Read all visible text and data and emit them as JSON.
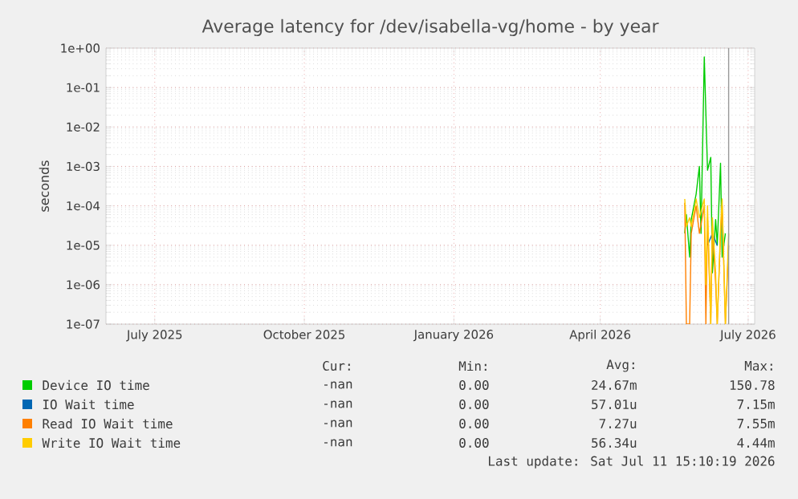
{
  "chart_data": {
    "type": "line",
    "title": "Average latency for /dev/isabella-vg/home - by year",
    "ylabel": "seconds",
    "log": "y",
    "grid": true,
    "legend": "bottom",
    "xlim": [
      "2025-06-01",
      "2026-07-05"
    ],
    "ylim": [
      1e-07,
      1
    ],
    "xticks": [
      {
        "value": "2025-07-01",
        "label": "July 2025"
      },
      {
        "value": "2025-10-01",
        "label": "October 2025"
      },
      {
        "value": "2026-01-01",
        "label": "January 2026"
      },
      {
        "value": "2026-04-01",
        "label": "April 2026"
      },
      {
        "value": "2026-07-01",
        "label": "July 2026"
      }
    ],
    "yticks": [
      {
        "value": 1e-07,
        "label": "1e-07"
      },
      {
        "value": 1e-06,
        "label": "1e-06"
      },
      {
        "value": 1e-05,
        "label": "1e-05"
      },
      {
        "value": 0.0001,
        "label": "1e-04"
      },
      {
        "value": 0.001,
        "label": "1e-03"
      },
      {
        "value": 0.01,
        "label": "1e-02"
      },
      {
        "value": 0.1,
        "label": "1e-01"
      },
      {
        "value": 1,
        "label": "1e+00"
      }
    ],
    "series": [
      {
        "name": "Device IO time",
        "color": "#00cc00",
        "x": [
          "2026-05-23",
          "2026-05-24",
          "2026-05-26",
          "2026-05-27",
          "2026-05-30",
          "2026-06-01",
          "2026-06-02",
          "2026-06-04",
          "2026-06-05",
          "2026-06-06",
          "2026-06-08",
          "2026-06-09",
          "2026-06-11",
          "2026-06-12",
          "2026-06-14",
          "2026-06-15",
          "2026-06-17"
        ],
        "values": [
          2e-05,
          6e-05,
          5e-06,
          4.5e-05,
          0.0002,
          0.001,
          2e-05,
          0.6,
          null,
          0.0008,
          0.0017,
          2e-06,
          4.5e-05,
          1e-05,
          0.0012,
          5e-06,
          2e-05
        ]
      },
      {
        "name": "IO Wait time",
        "color": "#0066b3",
        "x": [
          "2026-06-06",
          "2026-06-09",
          "2026-06-12"
        ],
        "values": [
          1e-05,
          2e-05,
          1e-05
        ]
      },
      {
        "name": "Read IO Wait time",
        "color": "#ff8000",
        "x": [
          "2026-05-23",
          "2026-05-24",
          "2026-05-26",
          "2026-05-27",
          "2026-05-30",
          "2026-06-01",
          "2026-06-04",
          "2026-06-05",
          "2026-06-06",
          "2026-06-08",
          "2026-06-09",
          "2026-06-11",
          "2026-06-12",
          "2026-06-14",
          "2026-06-15",
          "2026-06-17",
          "2026-06-19"
        ],
        "values": [
          0.00012,
          1e-07,
          1e-07,
          2e-05,
          0.0001,
          2e-05,
          0.0001,
          1e-07,
          5e-05,
          1e-07,
          3e-05,
          1e-06,
          1e-07,
          2e-05,
          0.0001,
          1e-07,
          1e-05
        ]
      },
      {
        "name": "Write IO Wait time",
        "color": "#ffcc00",
        "x": [
          "2026-05-23",
          "2026-05-24",
          "2026-05-26",
          "2026-05-27",
          "2026-05-30",
          "2026-06-01",
          "2026-06-04",
          "2026-06-05",
          "2026-06-06",
          "2026-06-08",
          "2026-06-09",
          "2026-06-11",
          "2026-06-12",
          "2026-06-14",
          "2026-06-15",
          "2026-06-17",
          "2026-06-19"
        ],
        "values": [
          0.00015,
          3e-05,
          5e-05,
          3e-05,
          0.00015,
          5e-05,
          0.00015,
          1e-06,
          0.0001,
          1e-07,
          5e-05,
          2e-06,
          1e-07,
          3e-05,
          0.00015,
          1e-07,
          2e-05
        ]
      }
    ],
    "ref_lines": [
      {
        "axis": "x",
        "value": "2026-06-19",
        "color": "#999999"
      }
    ],
    "annotations": [
      "Cur:",
      "Min:",
      "Avg:",
      "Max:",
      "-nan",
      "0.00",
      "24.67m",
      "150.78",
      "-nan",
      "0.00",
      "57.01u",
      "7.15m",
      "-nan",
      "0.00",
      "7.27u",
      "7.55m",
      "-nan",
      "0.00",
      "56.34u",
      "4.44m",
      "Last update: Sat Jul 11 15:10:19 2026"
    ]
  }
}
